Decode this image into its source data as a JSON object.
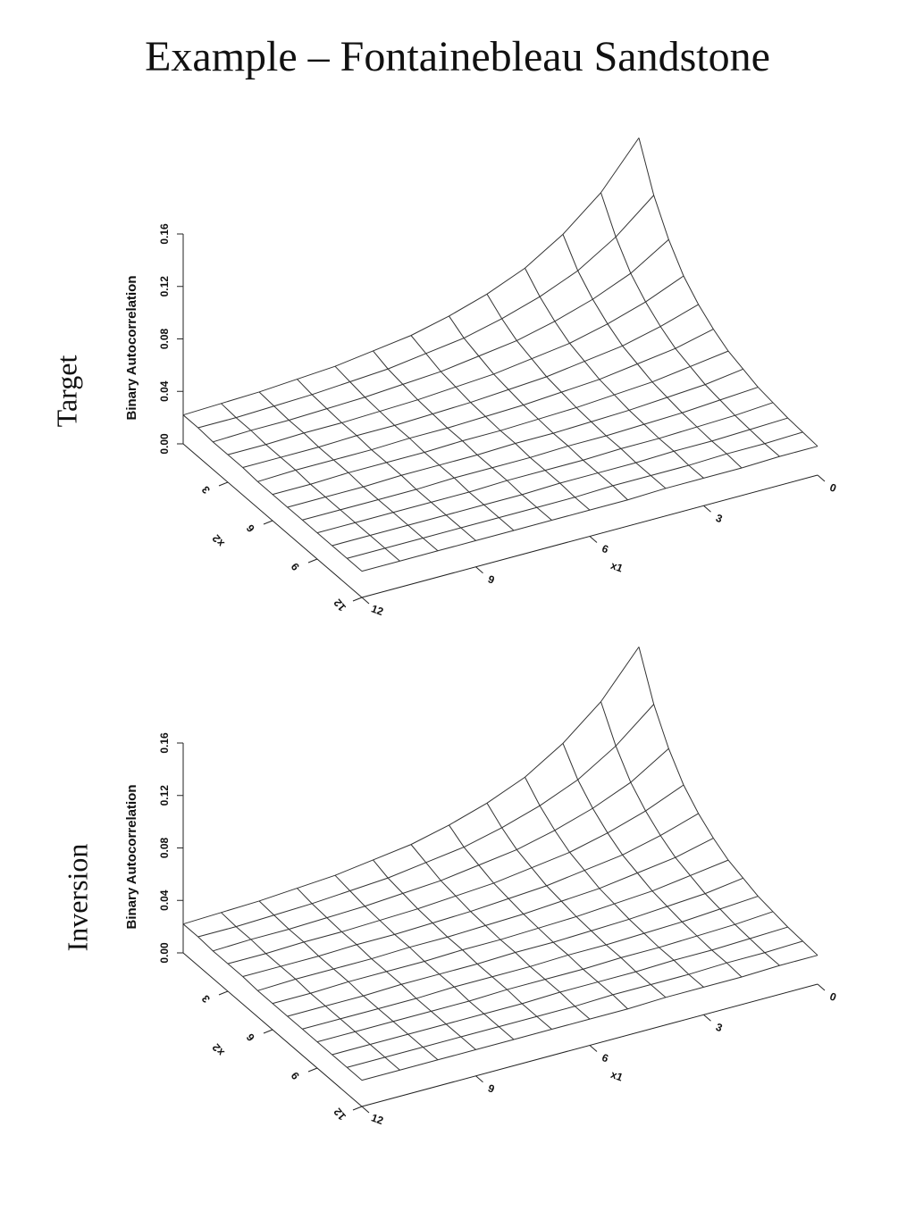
{
  "title": "Example – Fontainebleau Sandstone",
  "chart_data": [
    {
      "type": "surface",
      "panel_label": "Target",
      "zlabel": "Binary Autocorrelation",
      "xlabel": "x1",
      "ylabel": "x2",
      "x": [
        0,
        1,
        2,
        3,
        4,
        5,
        6,
        7,
        8,
        9,
        10,
        11,
        12
      ],
      "y": [
        0,
        1,
        2,
        3,
        4,
        5,
        6,
        7,
        8,
        9,
        10,
        11,
        12
      ],
      "values": [
        [
          0.14,
          0.106,
          0.082,
          0.064,
          0.052,
          0.043,
          0.036,
          0.032,
          0.028,
          0.026,
          0.024,
          0.023,
          0.022
        ],
        [
          0.106,
          0.082,
          0.064,
          0.052,
          0.043,
          0.036,
          0.032,
          0.028,
          0.026,
          0.024,
          0.023,
          0.022,
          0.022
        ],
        [
          0.082,
          0.064,
          0.052,
          0.043,
          0.036,
          0.032,
          0.028,
          0.026,
          0.024,
          0.023,
          0.022,
          0.022,
          0.021
        ],
        [
          0.064,
          0.052,
          0.043,
          0.036,
          0.032,
          0.028,
          0.026,
          0.024,
          0.023,
          0.022,
          0.022,
          0.021,
          0.021
        ],
        [
          0.052,
          0.043,
          0.036,
          0.032,
          0.028,
          0.026,
          0.024,
          0.023,
          0.022,
          0.022,
          0.021,
          0.021,
          0.021
        ],
        [
          0.043,
          0.036,
          0.032,
          0.028,
          0.026,
          0.024,
          0.023,
          0.022,
          0.022,
          0.021,
          0.021,
          0.021,
          0.02
        ],
        [
          0.036,
          0.032,
          0.028,
          0.026,
          0.024,
          0.023,
          0.022,
          0.022,
          0.021,
          0.021,
          0.021,
          0.02,
          0.02
        ],
        [
          0.032,
          0.028,
          0.026,
          0.024,
          0.023,
          0.022,
          0.022,
          0.021,
          0.021,
          0.021,
          0.02,
          0.02,
          0.02
        ],
        [
          0.028,
          0.026,
          0.024,
          0.023,
          0.022,
          0.022,
          0.021,
          0.021,
          0.021,
          0.02,
          0.02,
          0.02,
          0.02
        ],
        [
          0.026,
          0.024,
          0.023,
          0.022,
          0.022,
          0.021,
          0.021,
          0.021,
          0.02,
          0.02,
          0.02,
          0.02,
          0.02
        ],
        [
          0.024,
          0.023,
          0.022,
          0.022,
          0.021,
          0.021,
          0.021,
          0.02,
          0.02,
          0.02,
          0.02,
          0.02,
          0.02
        ],
        [
          0.023,
          0.022,
          0.022,
          0.021,
          0.021,
          0.021,
          0.02,
          0.02,
          0.02,
          0.02,
          0.02,
          0.02,
          0.02
        ],
        [
          0.022,
          0.022,
          0.021,
          0.021,
          0.021,
          0.02,
          0.02,
          0.02,
          0.02,
          0.02,
          0.02,
          0.02,
          0.02
        ]
      ],
      "xlim": [
        0,
        12
      ],
      "ylim": [
        0,
        12
      ],
      "zlim": [
        0,
        0.16
      ],
      "xticks": [
        0,
        3,
        6,
        9,
        12
      ],
      "yticks": [
        3,
        6,
        9,
        12
      ],
      "zticks": [
        {
          "value": 0,
          "label": "0.00"
        },
        {
          "value": 0.04,
          "label": "0.04"
        },
        {
          "value": 0.08,
          "label": "0.08"
        },
        {
          "value": 0.12,
          "label": "0.12"
        },
        {
          "value": 0.16,
          "label": "0.16"
        }
      ]
    },
    {
      "type": "surface",
      "panel_label": "Inversion",
      "zlabel": "Binary Autocorrelation",
      "xlabel": "x1",
      "ylabel": "x2",
      "x": [
        0,
        1,
        2,
        3,
        4,
        5,
        6,
        7,
        8,
        9,
        10,
        11,
        12
      ],
      "y": [
        0,
        1,
        2,
        3,
        4,
        5,
        6,
        7,
        8,
        9,
        10,
        11,
        12
      ],
      "values": [
        [
          0.14,
          0.106,
          0.082,
          0.064,
          0.052,
          0.043,
          0.036,
          0.032,
          0.028,
          0.026,
          0.024,
          0.023,
          0.022
        ],
        [
          0.106,
          0.082,
          0.064,
          0.052,
          0.043,
          0.036,
          0.032,
          0.028,
          0.026,
          0.024,
          0.023,
          0.022,
          0.022
        ],
        [
          0.082,
          0.064,
          0.052,
          0.043,
          0.036,
          0.032,
          0.028,
          0.026,
          0.024,
          0.023,
          0.022,
          0.022,
          0.021
        ],
        [
          0.064,
          0.052,
          0.043,
          0.036,
          0.032,
          0.028,
          0.026,
          0.024,
          0.023,
          0.022,
          0.022,
          0.021,
          0.021
        ],
        [
          0.052,
          0.043,
          0.036,
          0.032,
          0.028,
          0.026,
          0.024,
          0.023,
          0.022,
          0.022,
          0.021,
          0.021,
          0.021
        ],
        [
          0.043,
          0.036,
          0.032,
          0.028,
          0.026,
          0.024,
          0.023,
          0.022,
          0.022,
          0.021,
          0.021,
          0.021,
          0.02
        ],
        [
          0.036,
          0.032,
          0.028,
          0.026,
          0.024,
          0.023,
          0.022,
          0.022,
          0.021,
          0.021,
          0.021,
          0.02,
          0.02
        ],
        [
          0.032,
          0.028,
          0.026,
          0.024,
          0.023,
          0.022,
          0.022,
          0.021,
          0.021,
          0.021,
          0.02,
          0.02,
          0.02
        ],
        [
          0.028,
          0.026,
          0.024,
          0.023,
          0.022,
          0.022,
          0.021,
          0.021,
          0.021,
          0.02,
          0.02,
          0.02,
          0.02
        ],
        [
          0.026,
          0.024,
          0.023,
          0.022,
          0.022,
          0.021,
          0.021,
          0.021,
          0.02,
          0.02,
          0.02,
          0.02,
          0.02
        ],
        [
          0.024,
          0.023,
          0.022,
          0.022,
          0.021,
          0.021,
          0.021,
          0.02,
          0.02,
          0.02,
          0.02,
          0.02,
          0.02
        ],
        [
          0.023,
          0.022,
          0.022,
          0.021,
          0.021,
          0.021,
          0.02,
          0.02,
          0.02,
          0.02,
          0.02,
          0.02,
          0.02
        ],
        [
          0.022,
          0.022,
          0.021,
          0.021,
          0.021,
          0.02,
          0.02,
          0.02,
          0.02,
          0.02,
          0.02,
          0.02,
          0.02
        ]
      ],
      "xlim": [
        0,
        12
      ],
      "ylim": [
        0,
        12
      ],
      "zlim": [
        0,
        0.16
      ],
      "xticks": [
        0,
        3,
        6,
        9,
        12
      ],
      "yticks": [
        3,
        6,
        9,
        12
      ],
      "zticks": [
        {
          "value": 0,
          "label": "0.00"
        },
        {
          "value": 0.04,
          "label": "0.04"
        },
        {
          "value": 0.08,
          "label": "0.08"
        },
        {
          "value": 0.12,
          "label": "0.12"
        },
        {
          "value": 0.16,
          "label": "0.16"
        }
      ]
    }
  ]
}
